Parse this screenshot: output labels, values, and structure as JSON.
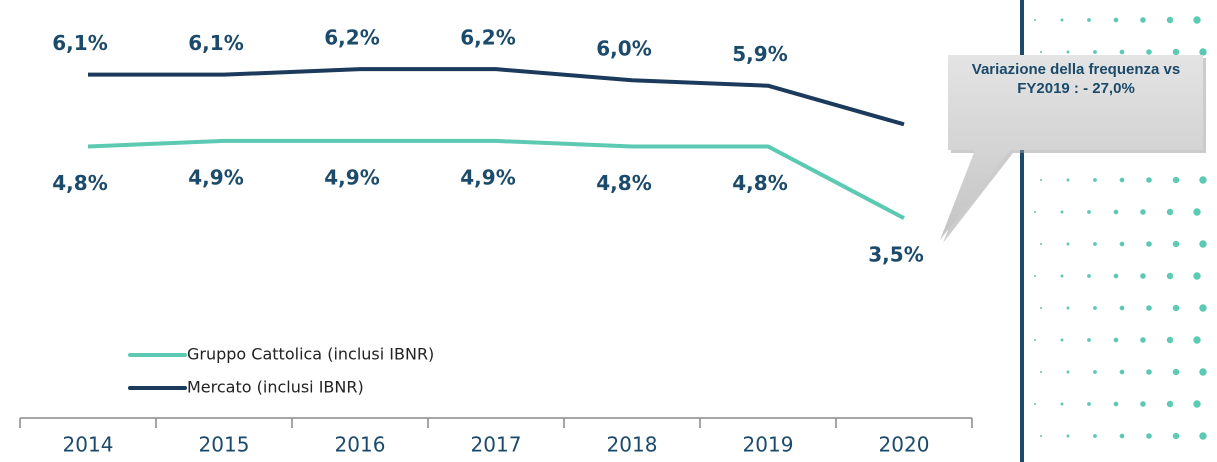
{
  "chart_data": {
    "type": "line",
    "categories": [
      "2014",
      "2015",
      "2016",
      "2017",
      "2018",
      "2019",
      "2020"
    ],
    "series": [
      {
        "name": "Gruppo Cattolica (inclusi IBNR)",
        "color": "#5ccab2",
        "values": [
          4.8,
          4.9,
          4.9,
          4.9,
          4.8,
          4.8,
          3.5
        ],
        "value_labels": [
          "4,8%",
          "4,9%",
          "4,9%",
          "4,9%",
          "4,8%",
          "4,8%",
          "3,5%"
        ]
      },
      {
        "name": "Mercato (inclusi IBNR)",
        "color": "#1b3a5c",
        "values": [
          6.1,
          6.1,
          6.2,
          6.2,
          6.0,
          5.9,
          5.2
        ],
        "value_labels": [
          "6,1%",
          "6,1%",
          "6,2%",
          "6,2%",
          "6,0%",
          "5,9%",
          null
        ]
      }
    ],
    "ylim": [
      2,
      7
    ],
    "annotation": "Variazione della frequenza vs FY2019 : - 27,0%"
  }
}
